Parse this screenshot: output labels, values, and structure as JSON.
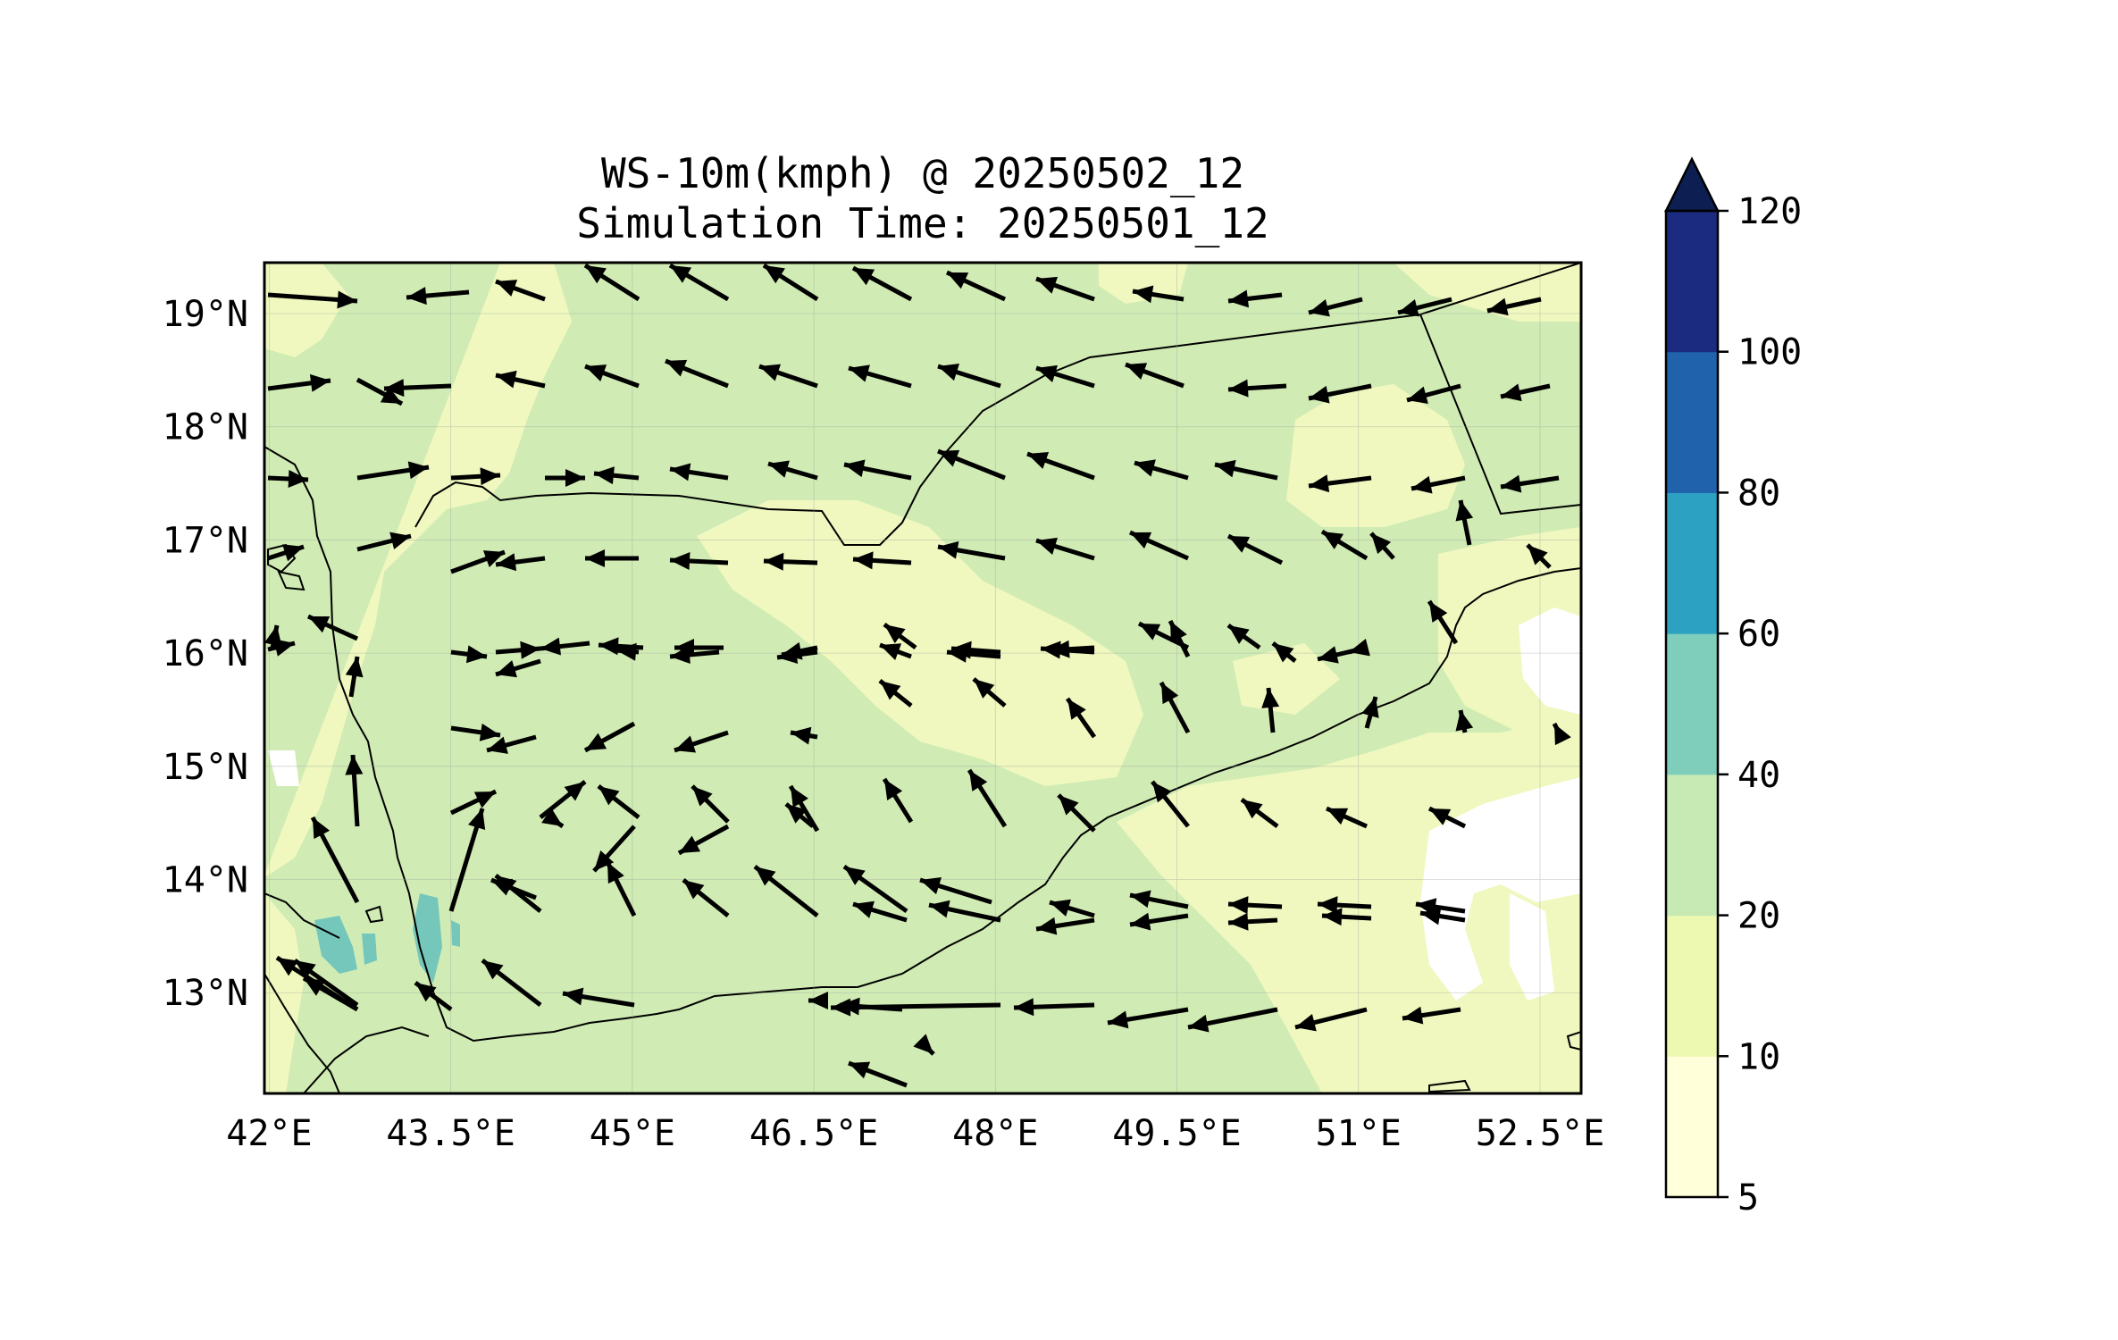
{
  "title": {
    "line1": "WS-10m(kmph) @ 20250502_12",
    "line2": "Simulation Time: 20250501_12"
  },
  "map": {
    "lon_range": [
      41.96,
      52.84
    ],
    "lat_range": [
      12.11,
      19.45
    ],
    "x_ticks": [
      "42°E",
      "43.5°E",
      "45°E",
      "46.5°E",
      "48°E",
      "49.5°E",
      "51°E",
      "52.5°E"
    ],
    "y_ticks": [
      "19°N",
      "18°N",
      "17°N",
      "16°N",
      "15°N",
      "14°N",
      "13°N"
    ],
    "field_colors": {
      "lt10": "#f0f8bf",
      "10-20": "#f0f8bf",
      "20-40": "#d0ecb4",
      "40-60": "#76c7bb",
      "white": "#ffffff"
    }
  },
  "colorbar": {
    "levels": [
      "5",
      "10",
      "20",
      "40",
      "60",
      "80",
      "100",
      "120"
    ],
    "colors": [
      "#ffffd9",
      "#edf8b1",
      "#c7e9b4",
      "#7fcdbb",
      "#2ca1c1",
      "#2062ac",
      "#1b2c80"
    ],
    "extend_color": "#0d1f52"
  },
  "wind": {
    "arrows": [
      [
        300,
        330,
        400,
        337
      ],
      [
        525,
        327,
        455,
        333
      ],
      [
        610,
        335,
        555,
        315
      ],
      [
        715,
        335,
        655,
        297
      ],
      [
        815,
        335,
        750,
        297
      ],
      [
        915,
        335,
        855,
        297
      ],
      [
        1020,
        335,
        955,
        300
      ],
      [
        1125,
        335,
        1060,
        305
      ],
      [
        1225,
        335,
        1160,
        312
      ],
      [
        1325,
        335,
        1268,
        326
      ],
      [
        1435,
        330,
        1375,
        337
      ],
      [
        1525,
        335,
        1465,
        350
      ],
      [
        1625,
        335,
        1565,
        350
      ],
      [
        1725,
        335,
        1665,
        348
      ],
      [
        300,
        435,
        370,
        426
      ],
      [
        400,
        425,
        450,
        452
      ],
      [
        505,
        432,
        430,
        435
      ],
      [
        610,
        432,
        555,
        420
      ],
      [
        715,
        432,
        655,
        410
      ],
      [
        815,
        432,
        745,
        404
      ],
      [
        915,
        432,
        850,
        410
      ],
      [
        1020,
        432,
        950,
        412
      ],
      [
        1120,
        432,
        1050,
        410
      ],
      [
        1225,
        432,
        1160,
        412
      ],
      [
        1325,
        432,
        1260,
        408
      ],
      [
        1440,
        432,
        1375,
        436
      ],
      [
        1535,
        432,
        1465,
        446
      ],
      [
        1635,
        432,
        1575,
        448
      ],
      [
        1735,
        432,
        1680,
        444
      ],
      [
        300,
        535,
        345,
        537
      ],
      [
        400,
        535,
        480,
        523
      ],
      [
        505,
        535,
        560,
        532
      ],
      [
        610,
        535,
        655,
        535
      ],
      [
        715,
        535,
        665,
        530
      ],
      [
        815,
        535,
        750,
        525
      ],
      [
        915,
        535,
        860,
        519
      ],
      [
        1020,
        535,
        945,
        520
      ],
      [
        1125,
        535,
        1050,
        505
      ],
      [
        1225,
        535,
        1150,
        508
      ],
      [
        1330,
        535,
        1270,
        518
      ],
      [
        1430,
        535,
        1360,
        520
      ],
      [
        1535,
        535,
        1465,
        544
      ],
      [
        1640,
        535,
        1580,
        547
      ],
      [
        1745,
        535,
        1680,
        545
      ],
      [
        300,
        625,
        340,
        612
      ],
      [
        400,
        615,
        460,
        600
      ],
      [
        505,
        640,
        565,
        618
      ],
      [
        610,
        625,
        555,
        632
      ],
      [
        715,
        625,
        655,
        625
      ],
      [
        815,
        630,
        750,
        627
      ],
      [
        915,
        630,
        855,
        628
      ],
      [
        1020,
        630,
        955,
        626
      ],
      [
        1125,
        625,
        1050,
        612
      ],
      [
        1225,
        625,
        1160,
        605
      ],
      [
        1330,
        625,
        1265,
        596
      ],
      [
        1435,
        630,
        1375,
        600
      ],
      [
        1530,
        625,
        1480,
        595
      ],
      [
        1560,
        625,
        1535,
        597
      ],
      [
        1645,
        610,
        1635,
        560
      ],
      [
        1735,
        635,
        1710,
        610
      ],
      [
        300,
        727,
        330,
        720
      ],
      [
        400,
        715,
        345,
        690
      ],
      [
        555,
        730,
        605,
        726
      ],
      [
        660,
        720,
        605,
        726
      ],
      [
        720,
        725,
        670,
        722
      ],
      [
        810,
        725,
        755,
        725
      ],
      [
        915,
        725,
        875,
        733
      ],
      [
        1025,
        725,
        990,
        699
      ],
      [
        1120,
        730,
        1065,
        726
      ],
      [
        1225,
        730,
        1165,
        726
      ],
      [
        1330,
        725,
        1275,
        698
      ],
      [
        1410,
        725,
        1375,
        700
      ],
      [
        1530,
        725,
        1475,
        738
      ],
      [
        1630,
        720,
        1600,
        673
      ],
      [
        305,
        725,
        310,
        700
      ],
      [
        505,
        730,
        545,
        735
      ],
      [
        605,
        740,
        555,
        755
      ],
      [
        715,
        730,
        690,
        728
      ],
      [
        805,
        730,
        750,
        735
      ],
      [
        915,
        730,
        870,
        736
      ],
      [
        1020,
        735,
        985,
        722
      ],
      [
        1120,
        735,
        1060,
        730
      ],
      [
        1225,
        725,
        1175,
        728
      ],
      [
        1330,
        735,
        1310,
        695
      ],
      [
        1450,
        740,
        1425,
        720
      ],
      [
        1530,
        725,
        1510,
        730
      ],
      [
        393,
        780,
        400,
        735
      ],
      [
        505,
        815,
        560,
        823
      ],
      [
        600,
        825,
        545,
        840
      ],
      [
        710,
        810,
        655,
        840
      ],
      [
        815,
        820,
        755,
        840
      ],
      [
        915,
        825,
        885,
        820
      ],
      [
        1020,
        790,
        985,
        762
      ],
      [
        1125,
        790,
        1090,
        760
      ],
      [
        1225,
        825,
        1195,
        782
      ],
      [
        1330,
        820,
        1300,
        764
      ],
      [
        1425,
        820,
        1420,
        770
      ],
      [
        1530,
        815,
        1540,
        780
      ],
      [
        1640,
        820,
        1635,
        795
      ],
      [
        1745,
        820,
        1740,
        810
      ],
      [
        400,
        925,
        395,
        845
      ],
      [
        505,
        910,
        555,
        886
      ],
      [
        605,
        915,
        655,
        875
      ],
      [
        715,
        915,
        670,
        880
      ],
      [
        815,
        920,
        775,
        880
      ],
      [
        915,
        930,
        885,
        880
      ],
      [
        1020,
        920,
        990,
        872
      ],
      [
        1125,
        925,
        1085,
        862
      ],
      [
        1225,
        930,
        1185,
        890
      ],
      [
        1330,
        925,
        1290,
        875
      ],
      [
        1430,
        925,
        1390,
        895
      ],
      [
        1530,
        925,
        1485,
        905
      ],
      [
        1640,
        925,
        1600,
        905
      ],
      [
        400,
        1010,
        350,
        915
      ],
      [
        600,
        1005,
        550,
        985
      ],
      [
        615,
        915,
        630,
        925
      ],
      [
        710,
        925,
        665,
        975
      ],
      [
        815,
        925,
        760,
        955
      ],
      [
        910,
        925,
        880,
        900
      ],
      [
        1015,
        1020,
        945,
        970
      ],
      [
        1110,
        1010,
        1030,
        985
      ],
      [
        1225,
        1025,
        1175,
        1010
      ],
      [
        1330,
        1015,
        1265,
        1002
      ],
      [
        1435,
        1015,
        1375,
        1012
      ],
      [
        1535,
        1015,
        1475,
        1012
      ],
      [
        1640,
        1020,
        1585,
        1012
      ],
      [
        505,
        1020,
        540,
        905
      ],
      [
        605,
        1020,
        555,
        980
      ],
      [
        710,
        1025,
        680,
        965
      ],
      [
        815,
        1025,
        765,
        985
      ],
      [
        915,
        1025,
        845,
        970
      ],
      [
        1015,
        1030,
        955,
        1012
      ],
      [
        1120,
        1030,
        1040,
        1013
      ],
      [
        1225,
        1030,
        1160,
        1040
      ],
      [
        1330,
        1025,
        1265,
        1035
      ],
      [
        1430,
        1030,
        1375,
        1033
      ],
      [
        1535,
        1028,
        1480,
        1025
      ],
      [
        1640,
        1030,
        1590,
        1022
      ],
      [
        400,
        1125,
        330,
        1075
      ],
      [
        505,
        1130,
        465,
        1100
      ],
      [
        605,
        1125,
        540,
        1075
      ],
      [
        710,
        1125,
        630,
        1112
      ],
      [
        815,
        1125,
        815,
        1125
      ],
      [
        915,
        1120,
        905,
        1120
      ],
      [
        1010,
        1130,
        940,
        1125
      ],
      [
        1120,
        1125,
        930,
        1128
      ],
      [
        1225,
        1125,
        1135,
        1128
      ],
      [
        1330,
        1130,
        1240,
        1145
      ],
      [
        1430,
        1130,
        1330,
        1150
      ],
      [
        1530,
        1130,
        1450,
        1150
      ],
      [
        1635,
        1130,
        1570,
        1140
      ],
      [
        1740,
        1130,
        1740,
        1130
      ],
      [
        400,
        1130,
        310,
        1072
      ],
      [
        400,
        1130,
        340,
        1095
      ],
      [
        1015,
        1215,
        950,
        1190
      ],
      [
        1035,
        1170,
        1045,
        1180
      ]
    ]
  }
}
